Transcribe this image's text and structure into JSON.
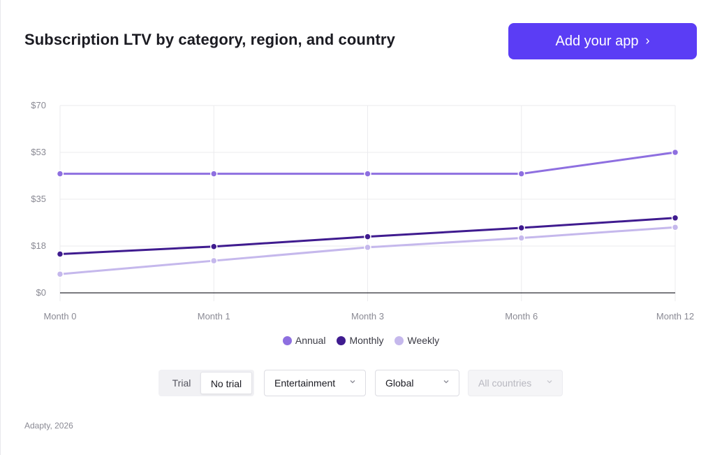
{
  "header": {
    "title": "Subscription LTV by category, region, and country",
    "cta_label": "Add your app",
    "cta_chevron": "›"
  },
  "chart_data": {
    "type": "line",
    "categories": [
      "Month 0",
      "Month 1",
      "Month 3",
      "Month 6",
      "Month 12"
    ],
    "series": [
      {
        "name": "Annual",
        "color": "#8e6fe0",
        "values": [
          44.5,
          44.5,
          44.5,
          44.5,
          52.5
        ]
      },
      {
        "name": "Monthly",
        "color": "#3f1b8f",
        "values": [
          14.5,
          17.3,
          21.0,
          24.3,
          28.0
        ]
      },
      {
        "name": "Weekly",
        "color": "#c5b8ec",
        "values": [
          7.0,
          12.0,
          17.0,
          20.5,
          24.5
        ]
      }
    ],
    "yticks": [
      "$70",
      "$53",
      "$35",
      "$18",
      "$0"
    ],
    "ylim": [
      0,
      70
    ],
    "grid": true,
    "legend_position": "bottom"
  },
  "controls": {
    "trial_toggle": {
      "options": [
        "Trial",
        "No trial"
      ],
      "selected": "No trial"
    },
    "category": "Entertainment",
    "region": "Global",
    "country": "All countries"
  },
  "footer": "Adapty, 2026",
  "icons": {
    "caret": "chevron-down-icon"
  }
}
